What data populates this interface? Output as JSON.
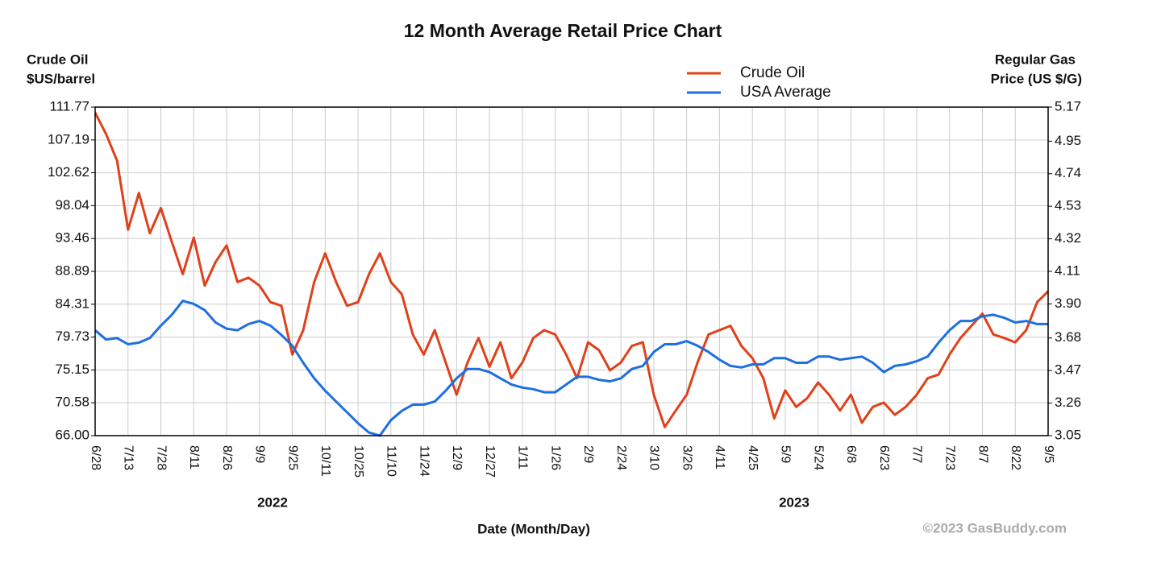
{
  "chart_data": {
    "type": "line",
    "title": "12 Month Average Retail Price Chart",
    "ylabel": [
      "Crude Oil",
      "$US/barrel"
    ],
    "y2label": [
      "Regular Gas",
      "Price (US $/G)"
    ],
    "xlabel": "Date (Month/Day)",
    "x_groups": [
      "2022",
      "2023"
    ],
    "credit": "©2023 GasBuddy.com",
    "categories": [
      "6/28",
      null,
      null,
      "7/13",
      null,
      null,
      "7/28",
      null,
      null,
      "8/11",
      null,
      null,
      "8/26",
      null,
      null,
      "9/9",
      null,
      null,
      "9/25",
      null,
      null,
      "10/11",
      null,
      null,
      "10/25",
      null,
      null,
      "11/10",
      null,
      null,
      "11/24",
      null,
      null,
      "12/9",
      null,
      null,
      "12/27",
      null,
      null,
      "1/11",
      null,
      null,
      "1/26",
      null,
      null,
      "2/9",
      null,
      null,
      "2/24",
      null,
      null,
      "3/10",
      null,
      null,
      "3/26",
      null,
      null,
      "4/11",
      null,
      null,
      "4/25",
      null,
      null,
      "5/9",
      null,
      null,
      "5/24",
      null,
      null,
      "6/8",
      null,
      null,
      "6/23",
      null,
      null,
      "7/7",
      null,
      null,
      "7/23",
      null,
      null,
      "8/7",
      null,
      null,
      "8/22",
      null,
      null,
      "9/5"
    ],
    "series": [
      {
        "name": "Crude Oil",
        "color": "#e0401a",
        "axis": "y",
        "values": [
          111,
          108,
          104.3,
          94.7,
          99.8,
          94.2,
          97.7,
          93,
          88.5,
          93.6,
          86.9,
          90.2,
          92.5,
          87.4,
          88,
          86.9,
          84.6,
          84.1,
          77.3,
          80.7,
          87.4,
          91.4,
          87.4,
          84.1,
          84.6,
          88.5,
          91.4,
          87.4,
          85.7,
          80.1,
          77.3,
          80.7,
          76.2,
          71.7,
          76.2,
          79.6,
          75.6,
          79,
          74,
          76.2,
          79.6,
          80.7,
          80.1,
          77.3,
          74,
          79,
          77.9,
          75.1,
          76.2,
          78.5,
          79,
          71.7,
          67.2,
          69.5,
          71.7,
          76.2,
          80.1,
          80.7,
          81.3,
          78.5,
          76.8,
          74,
          68.4,
          72.3,
          70,
          71.2,
          73.4,
          71.7,
          69.5,
          71.7,
          67.8,
          70,
          70.6,
          68.9,
          70,
          71.7,
          74,
          74.5,
          77.3,
          79.6,
          81.3,
          83,
          80.1,
          79.6,
          79,
          80.7,
          84.6,
          86.1
        ]
      },
      {
        "name": "USA Average",
        "color": "#1e6fe0",
        "axis": "y2",
        "values": [
          3.73,
          3.67,
          3.68,
          3.64,
          3.65,
          3.68,
          3.76,
          3.83,
          3.92,
          3.9,
          3.86,
          3.78,
          3.74,
          3.73,
          3.77,
          3.79,
          3.76,
          3.7,
          3.63,
          3.52,
          3.42,
          3.34,
          3.27,
          3.2,
          3.13,
          3.07,
          3.05,
          3.15,
          3.21,
          3.25,
          3.25,
          3.27,
          3.34,
          3.42,
          3.48,
          3.48,
          3.46,
          3.42,
          3.38,
          3.36,
          3.35,
          3.33,
          3.33,
          3.38,
          3.43,
          3.43,
          3.41,
          3.4,
          3.42,
          3.48,
          3.5,
          3.59,
          3.64,
          3.64,
          3.66,
          3.63,
          3.59,
          3.54,
          3.5,
          3.49,
          3.51,
          3.51,
          3.55,
          3.55,
          3.52,
          3.52,
          3.56,
          3.56,
          3.54,
          3.55,
          3.56,
          3.52,
          3.46,
          3.5,
          3.51,
          3.53,
          3.56,
          3.65,
          3.73,
          3.79,
          3.79,
          3.82,
          3.83,
          3.81,
          3.78,
          3.79,
          3.77,
          3.77
        ]
      }
    ],
    "ylim": [
      66,
      111.77
    ],
    "yticks": [
      {
        "value": 66,
        "label": "66.00"
      },
      70.58,
      75.15,
      79.73,
      84.31,
      88.89,
      93.46,
      98.04,
      102.62,
      107.19,
      111.77
    ],
    "y2lim": [
      3.05,
      5.17
    ],
    "y2ticks": [
      3.05,
      3.26,
      3.47,
      3.68,
      {
        "value": 3.9,
        "label": "3.90"
      },
      4.11,
      4.32,
      4.53,
      4.74,
      4.95,
      5.17
    ],
    "grid": true,
    "legend": "top"
  }
}
